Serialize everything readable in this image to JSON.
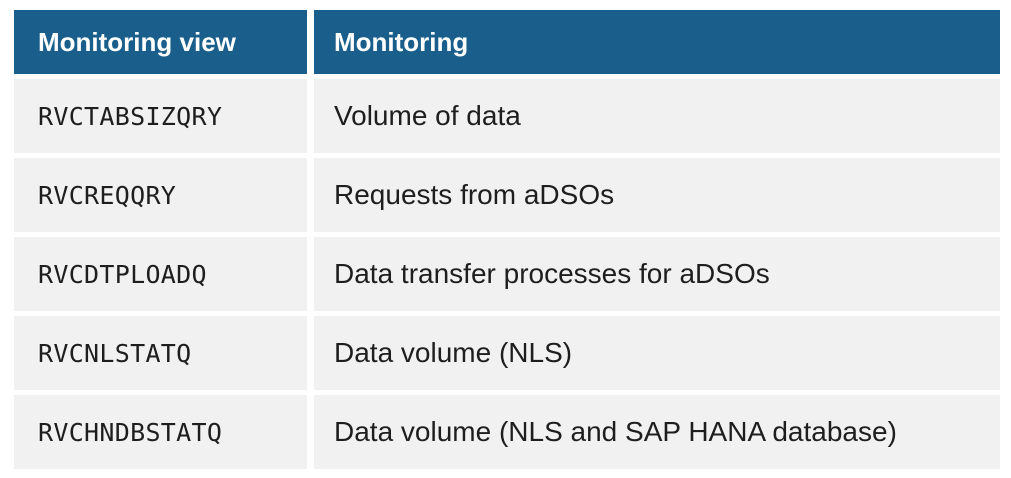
{
  "table": {
    "headers": [
      "Monitoring view",
      "Monitoring"
    ],
    "rows": [
      {
        "view": "RVCTABSIZQRY",
        "monitoring": "Volume of data"
      },
      {
        "view": "RVCREQQRY",
        "monitoring": "Requests from aDSOs"
      },
      {
        "view": "RVCDTPLOADQ",
        "monitoring": "Data transfer processes for aDSOs"
      },
      {
        "view": "RVCNLSTATQ",
        "monitoring": "Data volume (NLS)"
      },
      {
        "view": "RVCHNDBSTATQ",
        "monitoring": "Data volume (NLS and SAP HANA database)"
      }
    ],
    "colors": {
      "header_bg": "#1a5f8c",
      "header_text": "#ffffff",
      "row_bg": "#f1f1f1",
      "row_text": "#1e1e1e"
    }
  }
}
